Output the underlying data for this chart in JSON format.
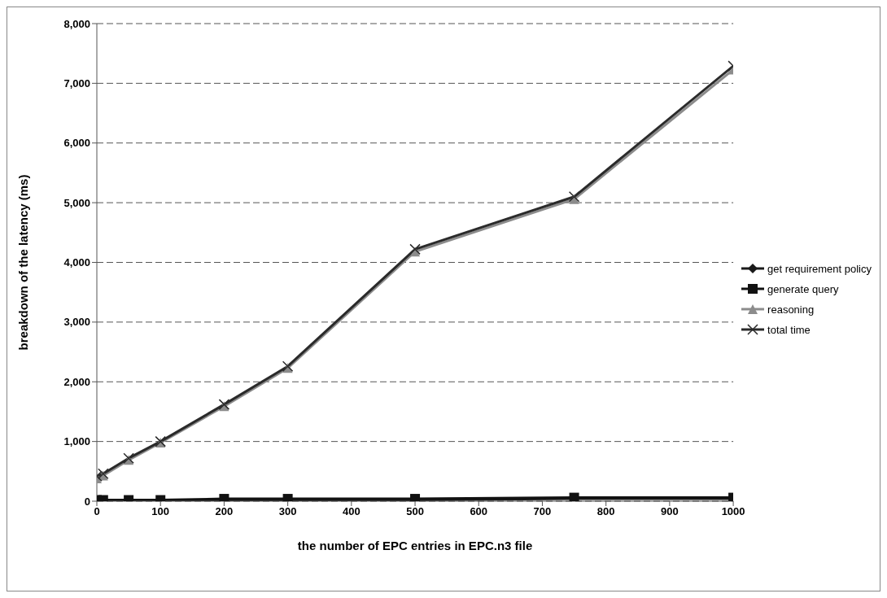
{
  "chart_data": {
    "type": "line",
    "xlabel": "the number of EPC entries in EPC.n3 file",
    "ylabel": "breakdown of the latency (ms)",
    "x": [
      0,
      10,
      50,
      100,
      200,
      300,
      500,
      750,
      1000
    ],
    "series": [
      {
        "name": "get requirement policy",
        "color": "#1a1a1a",
        "marker": "diamond",
        "values": [
          0,
          0,
          0,
          0,
          20,
          20,
          20,
          40,
          40
        ]
      },
      {
        "name": "generate query",
        "color": "#111111",
        "marker": "square",
        "values": [
          20,
          20,
          20,
          20,
          40,
          40,
          40,
          60,
          60
        ]
      },
      {
        "name": "reasoning",
        "color": "#8c8c8c",
        "marker": "triangle",
        "values": [
          380,
          430,
          690,
          980,
          1590,
          2230,
          4180,
          5060,
          7230
        ]
      },
      {
        "name": "total time",
        "color": "#2a2a2a",
        "marker": "cross",
        "values": [
          420,
          460,
          720,
          1000,
          1620,
          2260,
          4220,
          5100,
          7290
        ]
      }
    ],
    "xlim": [
      0,
      1000
    ],
    "xticks": [
      0,
      100,
      200,
      300,
      400,
      500,
      600,
      700,
      800,
      900,
      1000
    ],
    "ylim": [
      0,
      8000
    ],
    "yticks": [
      {
        "value": 0,
        "label": "0"
      },
      {
        "value": 1000,
        "label": "1,000"
      },
      {
        "value": 2000,
        "label": "2,000"
      },
      {
        "value": 3000,
        "label": "3,000"
      },
      {
        "value": 4000,
        "label": "4,000"
      },
      {
        "value": 5000,
        "label": "5,000"
      },
      {
        "value": 6000,
        "label": "6,000"
      },
      {
        "value": 7000,
        "label": "7,000"
      },
      {
        "value": 8000,
        "label": "8,000"
      }
    ],
    "grid": "y",
    "legend": "right",
    "line_style": "solid"
  }
}
